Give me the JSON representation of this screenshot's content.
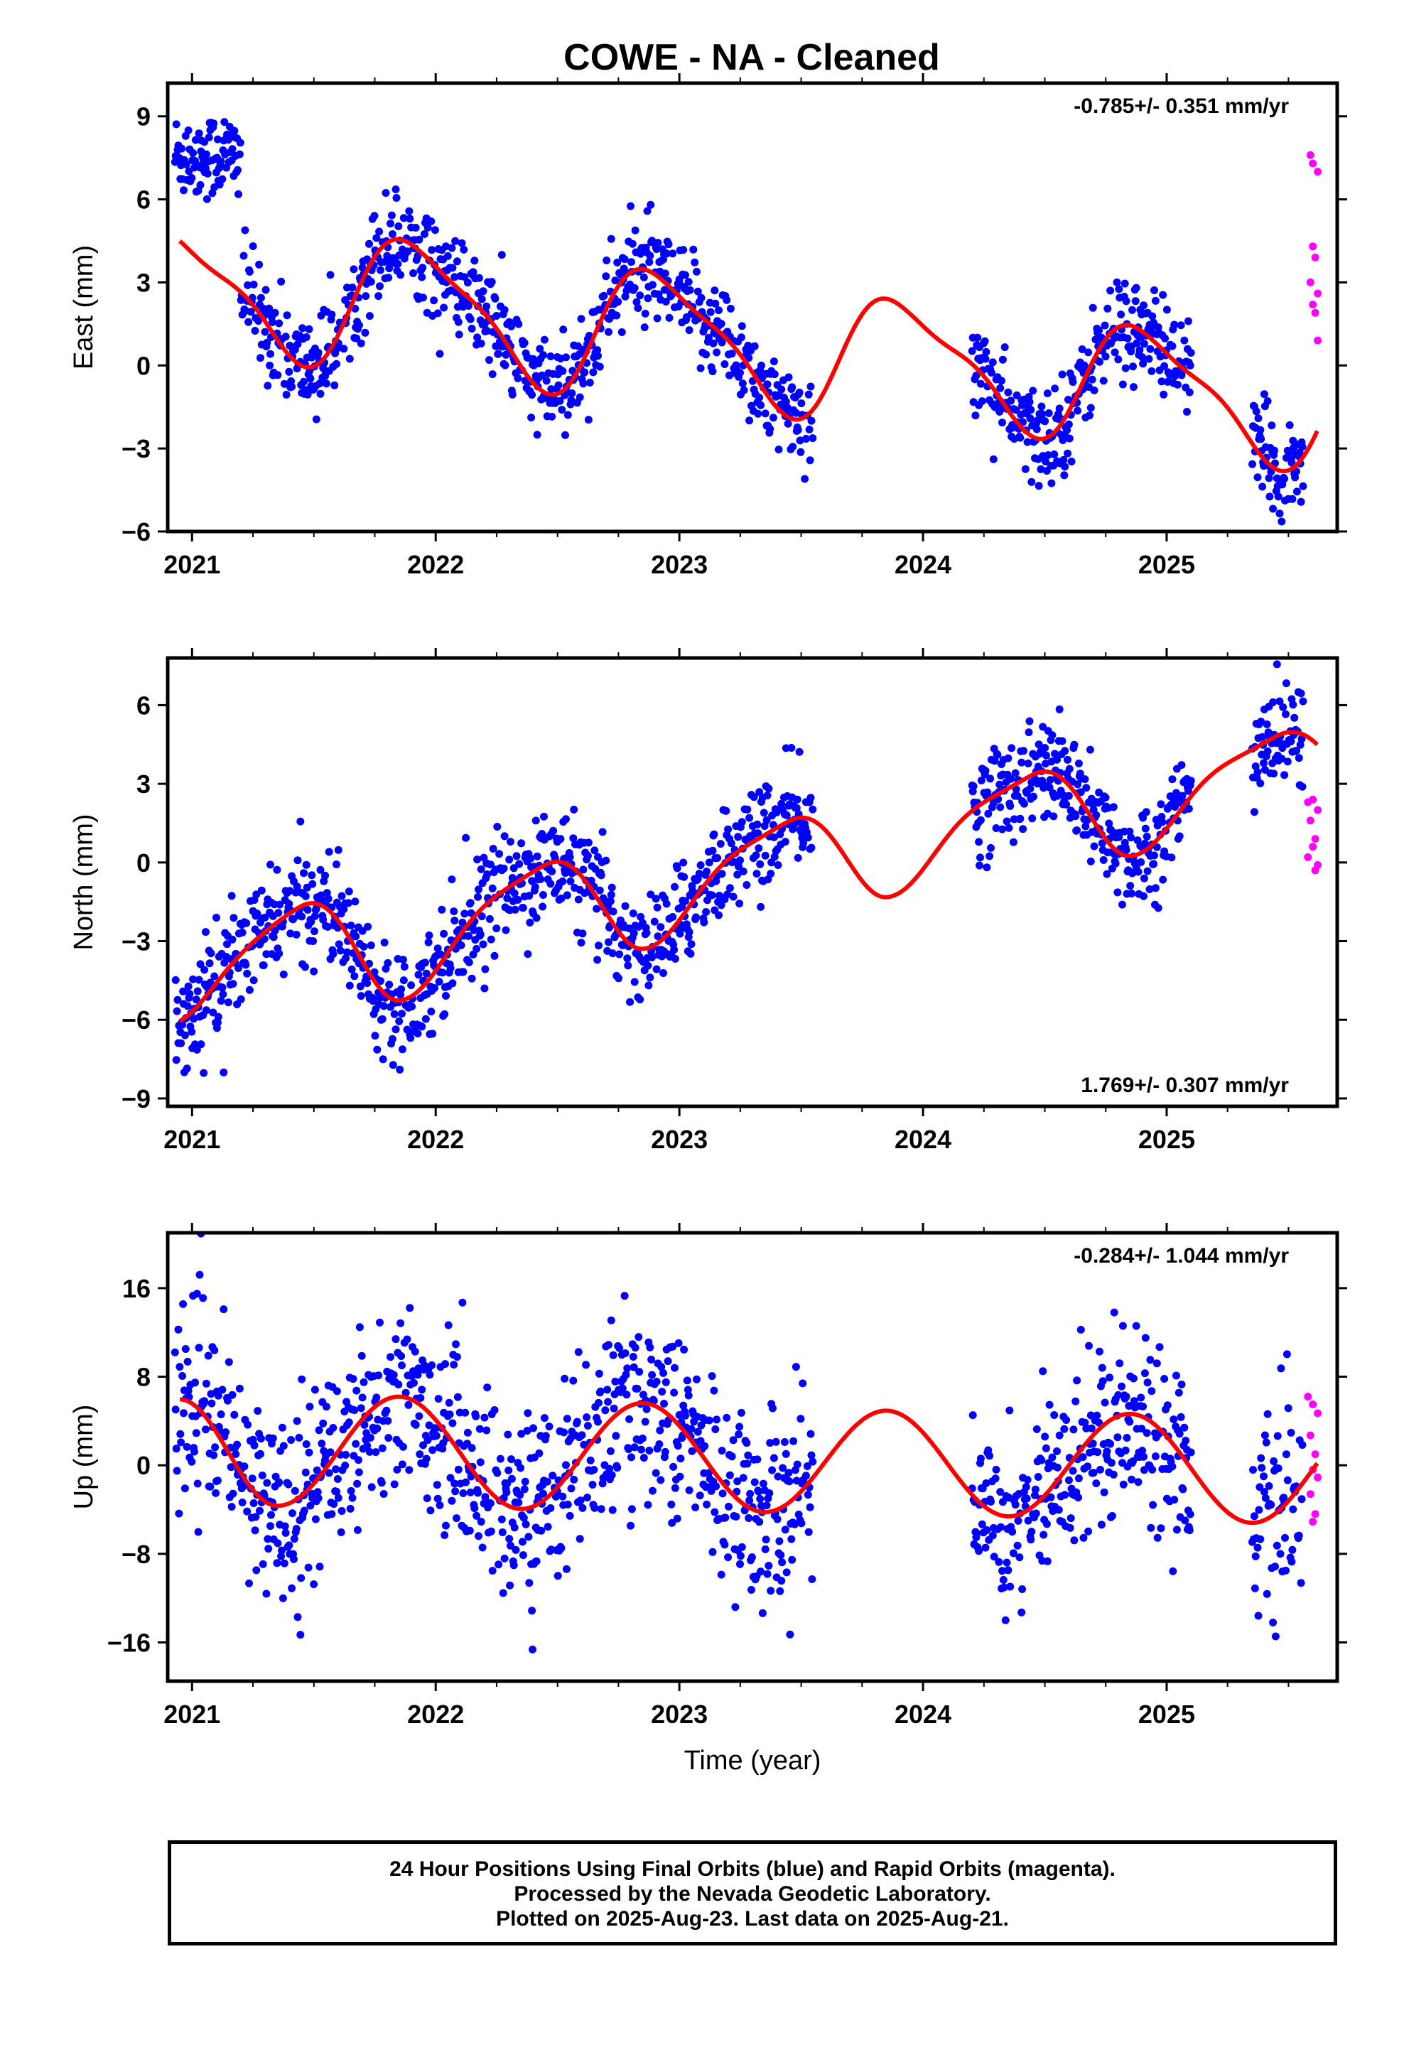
{
  "title": "COWE  - NA - Cleaned",
  "footer": {
    "line1": "24 Hour Positions Using Final Orbits (blue) and Rapid Orbits (magenta).",
    "line2": "Processed by the Nevada Geodetic Laboratory.",
    "line3": "Plotted on 2025-Aug-23. Last data on 2025-Aug-21."
  },
  "colors": {
    "final": "#0000ff",
    "rapid": "#ff00ff",
    "model": "#ff0000",
    "axis": "#000000"
  },
  "chart_data": [
    {
      "type": "scatter",
      "name": "east",
      "ylabel": "East (mm)",
      "xlabel": "",
      "rate_label": "-0.785+/- 0.351 mm/yr",
      "rate_position": "top-right",
      "xlim": [
        2020.9,
        2025.7
      ],
      "ylim": [
        -6,
        10.2
      ],
      "xticks": [
        2021,
        2022,
        2023,
        2024,
        2025
      ],
      "yticks": [
        -6,
        -3,
        0,
        3,
        6,
        9
      ],
      "gaps": [
        [
          2023.55,
          2024.2
        ],
        [
          2025.1,
          2025.35
        ]
      ],
      "trend": {
        "offset": 0.8,
        "rate": -0.785,
        "t0": 2023.25
      },
      "annual": [
        {
          "t": 2020.95,
          "v": 2.3
        },
        {
          "t": 2021.4,
          "v": -1.9
        },
        {
          "t": 2021.95,
          "v": 2.6
        },
        {
          "t": 2022.4,
          "v": -2.1
        },
        {
          "t": 2022.95,
          "v": 2.3
        },
        {
          "t": 2023.4,
          "v": -2.2
        },
        {
          "t": 2023.95,
          "v": 2.0
        },
        {
          "t": 2024.4,
          "v": -2.1
        },
        {
          "t": 2024.95,
          "v": 1.8
        },
        {
          "t": 2025.4,
          "v": -2.5
        },
        {
          "t": 2025.95,
          "v": 1.8
        }
      ],
      "semi_amp": 0.7,
      "semi_phase": 2021.15,
      "scatter_sd": 0.9,
      "early_block": {
        "start": 2020.93,
        "end": 2021.2,
        "mean": 7.6,
        "sd": 0.8
      },
      "rapid_points": [
        {
          "x": 2025.59,
          "y": 7.6
        },
        {
          "x": 2025.6,
          "y": 7.3
        },
        {
          "x": 2025.62,
          "y": 7.0
        },
        {
          "x": 2025.6,
          "y": 4.3
        },
        {
          "x": 2025.61,
          "y": 3.9
        },
        {
          "x": 2025.59,
          "y": 3.0
        },
        {
          "x": 2025.62,
          "y": 2.6
        },
        {
          "x": 2025.6,
          "y": 2.2
        },
        {
          "x": 2025.61,
          "y": 1.9
        },
        {
          "x": 2025.62,
          "y": 0.9
        }
      ]
    },
    {
      "type": "scatter",
      "name": "north",
      "ylabel": "North (mm)",
      "xlabel": "",
      "rate_label": "1.769+/- 0.307 mm/yr",
      "rate_position": "bottom-right",
      "xlim": [
        2020.9,
        2025.7
      ],
      "ylim": [
        -9.3,
        7.8
      ],
      "xticks": [
        2021,
        2022,
        2023,
        2024,
        2025
      ],
      "yticks": [
        -9,
        -6,
        -3,
        0,
        3,
        6
      ],
      "gaps": [
        [
          2023.55,
          2024.2
        ],
        [
          2025.1,
          2025.35
        ]
      ],
      "trend": {
        "offset": -0.3,
        "rate": 1.769,
        "t0": 2023.25
      },
      "annual": [
        {
          "t": 2020.95,
          "v": -1.5
        },
        {
          "t": 2021.45,
          "v": 2.0
        },
        {
          "t": 2021.85,
          "v": -2.2
        },
        {
          "t": 2022.45,
          "v": 1.8
        },
        {
          "t": 2022.85,
          "v": -2.0
        },
        {
          "t": 2023.45,
          "v": 1.7
        },
        {
          "t": 2023.85,
          "v": -1.8
        },
        {
          "t": 2024.45,
          "v": 1.7
        },
        {
          "t": 2024.85,
          "v": -2.0
        },
        {
          "t": 2025.45,
          "v": 1.4
        },
        {
          "t": 2025.85,
          "v": -1.5
        }
      ],
      "semi_amp": 0.3,
      "semi_phase": 2021.0,
      "scatter_sd": 1.0,
      "early_block": null,
      "rapid_points": [
        {
          "x": 2025.58,
          "y": 2.3
        },
        {
          "x": 2025.6,
          "y": 2.4
        },
        {
          "x": 2025.62,
          "y": 2.0
        },
        {
          "x": 2025.59,
          "y": 1.6
        },
        {
          "x": 2025.61,
          "y": 0.9
        },
        {
          "x": 2025.6,
          "y": 0.6
        },
        {
          "x": 2025.58,
          "y": 0.2
        },
        {
          "x": 2025.62,
          "y": -0.1
        },
        {
          "x": 2025.61,
          "y": -0.3
        }
      ]
    },
    {
      "type": "scatter",
      "name": "up",
      "ylabel": "Up (mm)",
      "xlabel": "Time (year)",
      "rate_label": "-0.284+/- 1.044 mm/yr",
      "rate_position": "top-right",
      "xlim": [
        2020.9,
        2025.7
      ],
      "ylim": [
        -19.5,
        21
      ],
      "xticks": [
        2021,
        2022,
        2023,
        2024,
        2025
      ],
      "yticks": [
        -16,
        -8,
        0,
        8,
        16
      ],
      "gaps": [
        [
          2023.55,
          2024.2
        ],
        [
          2025.1,
          2025.35
        ]
      ],
      "trend": {
        "offset": 0.3,
        "rate": -0.284,
        "t0": 2023.25
      },
      "annual": [
        {
          "t": 2020.95,
          "v": 5.0
        },
        {
          "t": 2021.35,
          "v": -4.5
        },
        {
          "t": 2021.85,
          "v": 5.5
        },
        {
          "t": 2022.35,
          "v": -4.5
        },
        {
          "t": 2022.85,
          "v": 5.2
        },
        {
          "t": 2023.35,
          "v": -4.5
        },
        {
          "t": 2023.85,
          "v": 4.8
        },
        {
          "t": 2024.35,
          "v": -4.6
        },
        {
          "t": 2024.85,
          "v": 4.8
        },
        {
          "t": 2025.35,
          "v": -4.9
        },
        {
          "t": 2025.85,
          "v": 4.9
        }
      ],
      "semi_amp": 0.0,
      "semi_phase": 2021.0,
      "scatter_sd": 4.2,
      "early_block": null,
      "rapid_points": [
        {
          "x": 2025.58,
          "y": 6.2
        },
        {
          "x": 2025.6,
          "y": 5.5
        },
        {
          "x": 2025.62,
          "y": 4.7
        },
        {
          "x": 2025.59,
          "y": 2.7
        },
        {
          "x": 2025.61,
          "y": 1.0
        },
        {
          "x": 2025.6,
          "y": -0.4
        },
        {
          "x": 2025.62,
          "y": -1.1
        },
        {
          "x": 2025.59,
          "y": -2.6
        },
        {
          "x": 2025.61,
          "y": -4.4
        },
        {
          "x": 2025.6,
          "y": -5.1
        }
      ]
    }
  ]
}
